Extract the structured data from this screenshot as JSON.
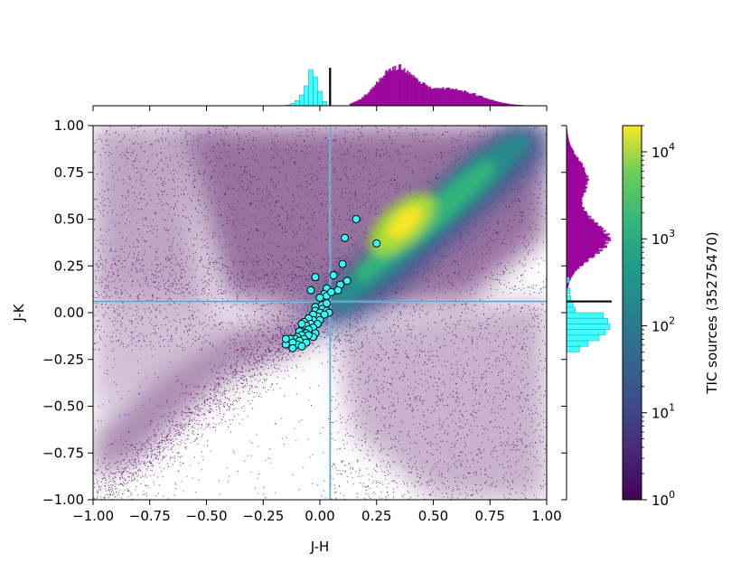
{
  "chart_data": {
    "type": "scatter",
    "title": "",
    "xlabel": "J-H",
    "ylabel": "J-K",
    "xlim": [
      -1.0,
      1.0
    ],
    "ylim": [
      -1.0,
      1.0
    ],
    "x_ticks": [
      "−1.00",
      "−0.75",
      "−0.50",
      "−0.25",
      "0.00",
      "0.25",
      "0.50",
      "0.75",
      "1.00"
    ],
    "y_ticks": [
      "1.00",
      "0.75",
      "0.50",
      "0.25",
      "0.00",
      "−0.25",
      "−0.50",
      "−0.75",
      "−1.00"
    ],
    "colorbar": {
      "label": "TIC sources (35275470)",
      "scale": "log",
      "range": [
        1,
        20000
      ],
      "ticks": [
        {
          "base": "10",
          "exp": "0",
          "value": 1
        },
        {
          "base": "10",
          "exp": "1",
          "value": 10
        },
        {
          "base": "10",
          "exp": "2",
          "value": 100
        },
        {
          "base": "10",
          "exp": "3",
          "value": 1000
        },
        {
          "base": "10",
          "exp": "4",
          "value": 10000
        }
      ],
      "colormap": "viridis"
    },
    "cut_lines": {
      "x": 0.045,
      "y": 0.06,
      "color": "#87cefa"
    },
    "density_ridge": {
      "from": [
        -0.05,
        -0.05
      ],
      "to": [
        0.85,
        0.9
      ],
      "peak": [
        0.36,
        0.42
      ]
    },
    "highlighted_points": {
      "color": "#33ffff",
      "x": [
        0.16,
        0.25,
        0.11,
        -0.02,
        0.1,
        0.12,
        0.06,
        0.09,
        0.03,
        -0.04,
        0.02,
        0.08,
        0.03,
        0.05,
        0.0,
        0.01,
        0.03,
        -0.02,
        0.01,
        0.03,
        0.04,
        -0.02,
        0.0,
        0.02,
        -0.01,
        -0.03,
        0.0,
        -0.03,
        -0.05,
        -0.01,
        -0.04,
        -0.07,
        -0.03,
        -0.06,
        -0.08,
        -0.05,
        -0.02,
        -0.09,
        -0.06,
        -0.03,
        -0.08,
        -0.1,
        -0.05,
        -0.07,
        -0.11,
        -0.09,
        -0.06,
        -0.13,
        -0.1,
        -0.12,
        -0.15,
        -0.08,
        -0.12,
        -0.15
      ],
      "y": [
        0.5,
        0.37,
        0.4,
        0.19,
        0.26,
        0.17,
        0.2,
        0.15,
        0.13,
        0.12,
        0.1,
        0.12,
        0.09,
        0.11,
        0.08,
        0.04,
        0.05,
        0.03,
        0.02,
        0.01,
        0.0,
        0.01,
        0.0,
        -0.01,
        -0.02,
        -0.01,
        -0.04,
        -0.04,
        -0.03,
        -0.06,
        -0.06,
        -0.05,
        -0.08,
        -0.07,
        -0.06,
        -0.09,
        -0.11,
        -0.1,
        -0.11,
        -0.13,
        -0.12,
        -0.13,
        -0.12,
        -0.14,
        -0.14,
        -0.15,
        -0.16,
        -0.14,
        -0.17,
        -0.16,
        -0.17,
        -0.18,
        -0.19,
        -0.14
      ]
    },
    "marginal_x": {
      "bins_center": [
        0.045
      ],
      "selected_color": "#33ffff",
      "all_color": "#990099"
    },
    "marginal_y": {
      "selected_color": "#33ffff",
      "all_color": "#990099"
    }
  }
}
